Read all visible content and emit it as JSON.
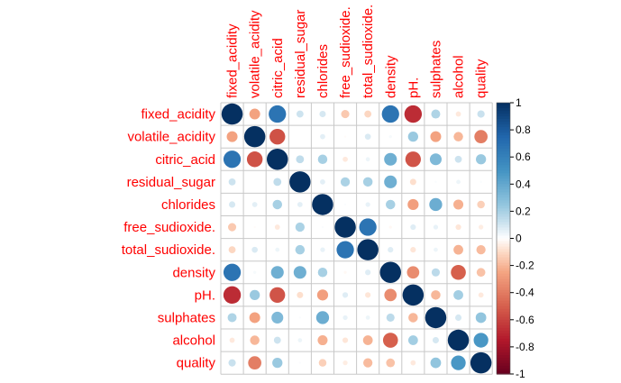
{
  "chart_data": {
    "type": "heatmap",
    "variables": [
      "fixed_acidity",
      "volatile_acidity",
      "citric_acid",
      "residual_sugar",
      "chlorides",
      "free_sudioxide.",
      "total_sudioxide.",
      "density",
      "pH.",
      "sulphates",
      "alcohol",
      "quality"
    ],
    "matrix": [
      [
        1.0,
        -0.26,
        0.67,
        0.11,
        0.09,
        -0.15,
        -0.11,
        0.67,
        -0.68,
        0.18,
        -0.06,
        0.12
      ],
      [
        -0.26,
        1.0,
        -0.55,
        0.0,
        0.06,
        -0.01,
        0.08,
        0.02,
        0.23,
        -0.26,
        -0.2,
        -0.39
      ],
      [
        0.67,
        -0.55,
        1.0,
        0.14,
        0.2,
        -0.06,
        0.04,
        0.36,
        -0.54,
        0.31,
        0.11,
        0.23
      ],
      [
        0.11,
        0.0,
        0.14,
        1.0,
        0.06,
        0.19,
        0.2,
        0.36,
        -0.09,
        0.01,
        0.04,
        0.01
      ],
      [
        0.09,
        0.06,
        0.2,
        0.06,
        1.0,
        0.01,
        0.05,
        0.2,
        -0.27,
        0.37,
        -0.22,
        -0.13
      ],
      [
        -0.15,
        -0.01,
        -0.06,
        0.19,
        0.01,
        1.0,
        0.67,
        -0.02,
        0.07,
        0.05,
        -0.07,
        -0.05
      ],
      [
        -0.11,
        0.08,
        0.04,
        0.2,
        0.05,
        0.67,
        1.0,
        0.07,
        -0.07,
        0.04,
        -0.21,
        -0.19
      ],
      [
        0.67,
        0.02,
        0.36,
        0.36,
        0.2,
        -0.02,
        0.07,
        1.0,
        -0.34,
        0.15,
        -0.5,
        -0.17
      ],
      [
        -0.68,
        0.23,
        -0.54,
        -0.09,
        -0.27,
        0.07,
        -0.07,
        -0.34,
        1.0,
        -0.2,
        0.21,
        -0.06
      ],
      [
        0.18,
        -0.26,
        0.31,
        0.01,
        0.37,
        0.05,
        0.04,
        0.15,
        -0.2,
        1.0,
        0.09,
        0.25
      ],
      [
        -0.06,
        -0.2,
        0.11,
        0.04,
        -0.22,
        -0.07,
        -0.21,
        -0.5,
        0.21,
        0.09,
        1.0,
        0.48
      ],
      [
        0.12,
        -0.39,
        0.23,
        0.01,
        -0.13,
        -0.05,
        -0.19,
        -0.17,
        -0.06,
        0.25,
        0.48,
        1.0
      ]
    ],
    "value_range": [
      -1,
      1
    ],
    "colorbar_ticks": [
      1,
      0.8,
      0.6,
      0.4,
      0.2,
      0,
      -0.2,
      -0.4,
      -0.6,
      -0.8,
      -1
    ],
    "colorbar_tick_labels": [
      "1",
      "0.8",
      "0.6",
      "0.4",
      "0.2",
      "0",
      "-0.2",
      "-0.4",
      "-0.6",
      "-0.8",
      "-1"
    ],
    "colors": {
      "label": "#ff0000",
      "grid": "#c8c8c8",
      "negative_strong": "#67001f",
      "neutral": "#ffffff",
      "positive_strong": "#053061"
    }
  }
}
